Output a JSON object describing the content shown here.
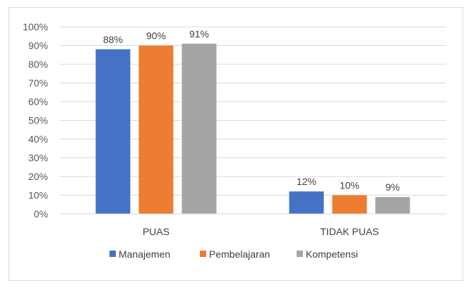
{
  "chart_data": {
    "type": "bar",
    "categories": [
      "PUAS",
      "TIDAK PUAS"
    ],
    "series": [
      {
        "name": "Manajemen",
        "values": [
          88,
          12
        ],
        "color": "#4472c4"
      },
      {
        "name": "Pembelajaran",
        "values": [
          90,
          10
        ],
        "color": "#ed7d31"
      },
      {
        "name": "Kompetensi",
        "values": [
          91,
          9
        ],
        "color": "#a5a5a5"
      }
    ],
    "ylim": [
      0,
      100
    ],
    "ytick_step": 10,
    "value_suffix": "%",
    "grid": true,
    "legend": "bottom"
  }
}
